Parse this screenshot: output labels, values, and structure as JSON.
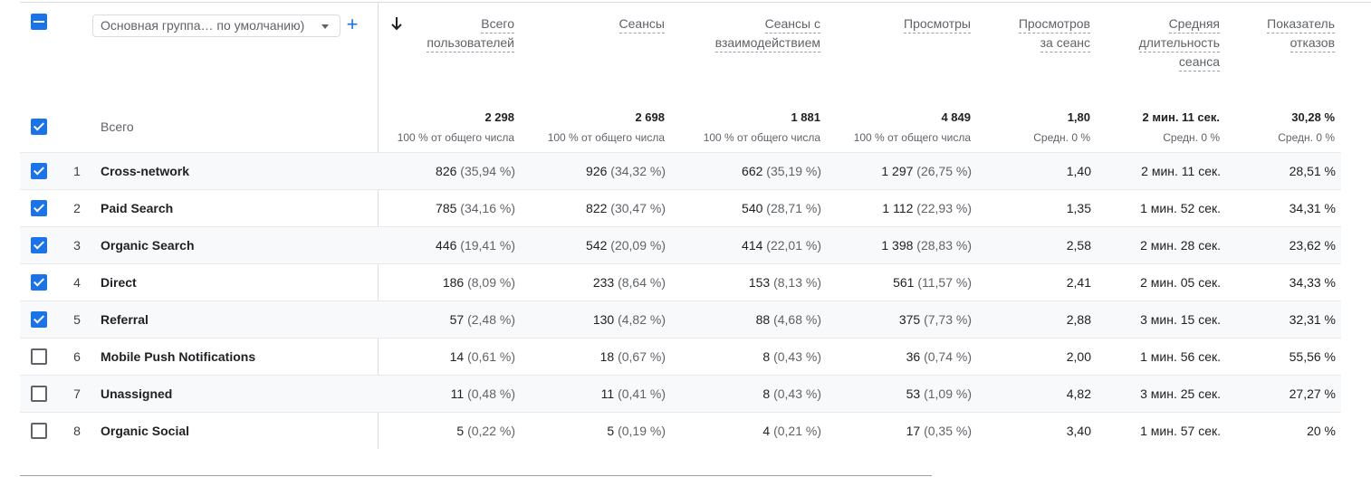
{
  "dimension_selector": {
    "value": "Основная группа… по умолчанию)"
  },
  "columns": [
    {
      "line1": "Всего",
      "line2": "пользователей",
      "line3": ""
    },
    {
      "line1": "Сеансы",
      "line2": "",
      "line3": ""
    },
    {
      "line1": "Сеансы с",
      "line2": "взаимодействием",
      "line3": ""
    },
    {
      "line1": "Просмотры",
      "line2": "",
      "line3": ""
    },
    {
      "line1": "Просмотров",
      "line2": "за сеанс",
      "line3": ""
    },
    {
      "line1": "Средняя",
      "line2": "длительность",
      "line3": "сеанса"
    },
    {
      "line1": "Показатель",
      "line2": "отказов",
      "line3": ""
    }
  ],
  "totals": {
    "label": "Всего",
    "values": [
      "2 298",
      "2 698",
      "1 881",
      "4 849",
      "1,80",
      "2 мин. 11 сек.",
      "30,28 %"
    ],
    "subs": [
      "100 % от общего числа",
      "100 % от общего числа",
      "100 % от общего числа",
      "100 % от общего числа",
      "Средн. 0 %",
      "Средн. 0 %",
      "Средн. 0 %"
    ]
  },
  "rows": [
    {
      "rank": "1",
      "name": "Cross-network",
      "checked": true,
      "users": "826",
      "users_pct": "(35,94 %)",
      "sessions": "926",
      "sessions_pct": "(34,32 %)",
      "engaged": "662",
      "engaged_pct": "(35,19 %)",
      "views": "1 297",
      "views_pct": "(26,75 %)",
      "vps": "1,40",
      "duration": "2 мин. 11 сек.",
      "bounce": "28,51 %"
    },
    {
      "rank": "2",
      "name": "Paid Search",
      "checked": true,
      "users": "785",
      "users_pct": "(34,16 %)",
      "sessions": "822",
      "sessions_pct": "(30,47 %)",
      "engaged": "540",
      "engaged_pct": "(28,71 %)",
      "views": "1 112",
      "views_pct": "(22,93 %)",
      "vps": "1,35",
      "duration": "1 мин. 52 сек.",
      "bounce": "34,31 %"
    },
    {
      "rank": "3",
      "name": "Organic Search",
      "checked": true,
      "users": "446",
      "users_pct": "(19,41 %)",
      "sessions": "542",
      "sessions_pct": "(20,09 %)",
      "engaged": "414",
      "engaged_pct": "(22,01 %)",
      "views": "1 398",
      "views_pct": "(28,83 %)",
      "vps": "2,58",
      "duration": "2 мин. 28 сек.",
      "bounce": "23,62 %"
    },
    {
      "rank": "4",
      "name": "Direct",
      "checked": true,
      "users": "186",
      "users_pct": "(8,09 %)",
      "sessions": "233",
      "sessions_pct": "(8,64 %)",
      "engaged": "153",
      "engaged_pct": "(8,13 %)",
      "views": "561",
      "views_pct": "(11,57 %)",
      "vps": "2,41",
      "duration": "2 мин. 05 сек.",
      "bounce": "34,33 %"
    },
    {
      "rank": "5",
      "name": "Referral",
      "checked": true,
      "users": "57",
      "users_pct": "(2,48 %)",
      "sessions": "130",
      "sessions_pct": "(4,82 %)",
      "engaged": "88",
      "engaged_pct": "(4,68 %)",
      "views": "375",
      "views_pct": "(7,73 %)",
      "vps": "2,88",
      "duration": "3 мин. 15 сек.",
      "bounce": "32,31 %"
    },
    {
      "rank": "6",
      "name": "Mobile Push Notifications",
      "checked": false,
      "users": "14",
      "users_pct": "(0,61 %)",
      "sessions": "18",
      "sessions_pct": "(0,67 %)",
      "engaged": "8",
      "engaged_pct": "(0,43 %)",
      "views": "36",
      "views_pct": "(0,74 %)",
      "vps": "2,00",
      "duration": "1 мин. 56 сек.",
      "bounce": "55,56 %"
    },
    {
      "rank": "7",
      "name": "Unassigned",
      "checked": false,
      "users": "11",
      "users_pct": "(0,48 %)",
      "sessions": "11",
      "sessions_pct": "(0,41 %)",
      "engaged": "8",
      "engaged_pct": "(0,43 %)",
      "views": "53",
      "views_pct": "(1,09 %)",
      "vps": "4,82",
      "duration": "3 мин. 25 сек.",
      "bounce": "27,27 %"
    },
    {
      "rank": "8",
      "name": "Organic Social",
      "checked": false,
      "users": "5",
      "users_pct": "(0,22 %)",
      "sessions": "5",
      "sessions_pct": "(0,19 %)",
      "engaged": "4",
      "engaged_pct": "(0,21 %)",
      "views": "17",
      "views_pct": "(0,35 %)",
      "vps": "3,40",
      "duration": "1 мин. 57 сек.",
      "bounce": "20 %"
    }
  ]
}
